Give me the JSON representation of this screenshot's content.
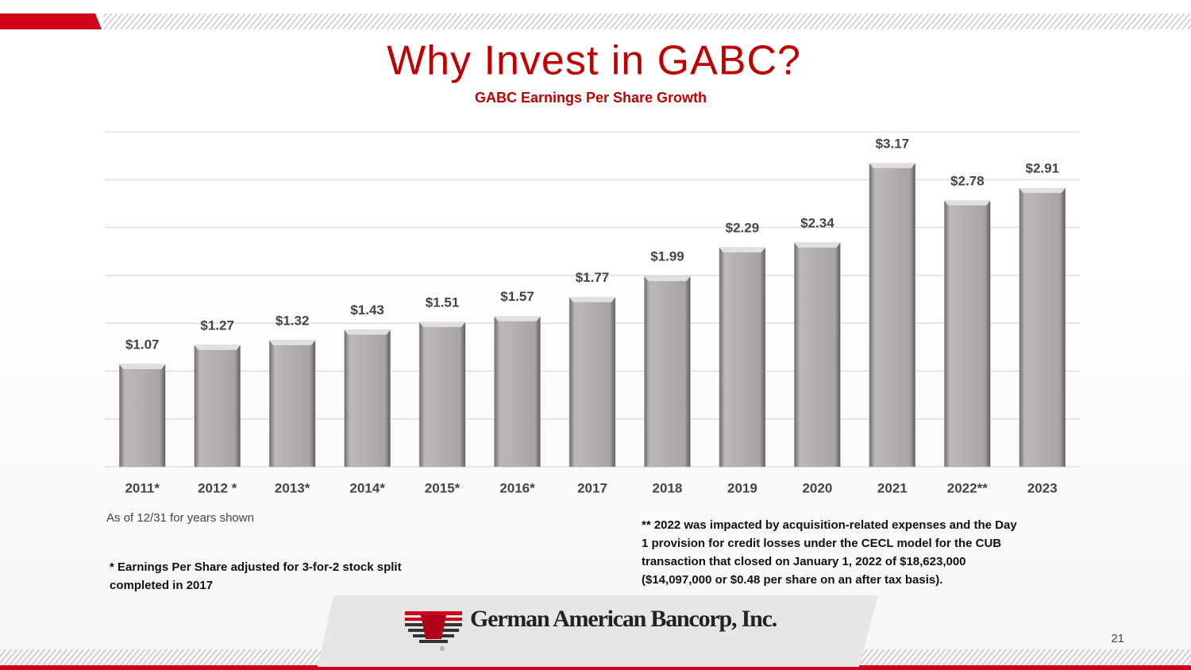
{
  "chart_data": {
    "type": "bar",
    "title": "Why Invest in GABC?",
    "subtitle": "GABC Earnings Per Share Growth",
    "categories": [
      "2011*",
      "2012 *",
      "2013*",
      "2014*",
      "2015*",
      "2016*",
      "2017",
      "2018",
      "2019",
      "2020",
      "2021",
      "2022**",
      "2023"
    ],
    "values": [
      1.07,
      1.27,
      1.32,
      1.43,
      1.51,
      1.57,
      1.77,
      1.99,
      2.29,
      2.34,
      3.17,
      2.78,
      2.91
    ],
    "value_labels": [
      "$1.07",
      "$1.27",
      "$1.32",
      "$1.43",
      "$1.51",
      "$1.57",
      "$1.77",
      "$1.99",
      "$2.29",
      "$2.34",
      "$3.17",
      "$2.78",
      "$2.91"
    ],
    "color": "#b3aeae",
    "ylim": [
      0,
      3.5
    ],
    "yticks": [
      0,
      0.5,
      1,
      1.5,
      2,
      2.5,
      3,
      3.5
    ],
    "grid": true,
    "annotations": [
      "As of 12/31 for years shown"
    ],
    "footnotes": [
      [
        "* Earnings Per Share adjusted for 3-for-2 stock split",
        "completed in 2017"
      ],
      [
        "** 2022 was impacted by acquisition-related expenses and the Day",
        "1 provision for credit losses under the CECL model for the CUB",
        "transaction that closed on January 1, 2022 of $18,623,000",
        "($14,097,000 or $0.48 per share on an after tax basis)."
      ]
    ]
  },
  "footer": {
    "company": "German American Bancorp, Inc.",
    "registered": "®",
    "page_number": "21"
  }
}
